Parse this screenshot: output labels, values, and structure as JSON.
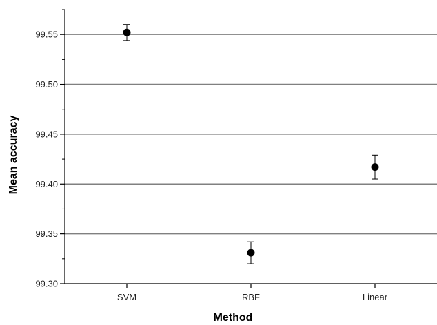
{
  "chart_data": {
    "type": "scatter",
    "title": "",
    "xlabel": "Method",
    "ylabel": "Mean accuracy",
    "categories": [
      "SVM",
      "RBF",
      "Linear"
    ],
    "values": [
      99.552,
      99.331,
      99.417
    ],
    "error": [
      0.008,
      0.011,
      0.012
    ],
    "ylim": [
      99.3,
      99.575
    ],
    "yticks": [
      "99.30",
      "99.35",
      "99.40",
      "99.45",
      "99.50",
      "99.55"
    ],
    "grid": "horizontal at major ticks",
    "legend": "none",
    "marker": "filled circle with error bars",
    "colors": {
      "marker": "#000000",
      "grid": "#808080",
      "axis": "#000000"
    }
  }
}
